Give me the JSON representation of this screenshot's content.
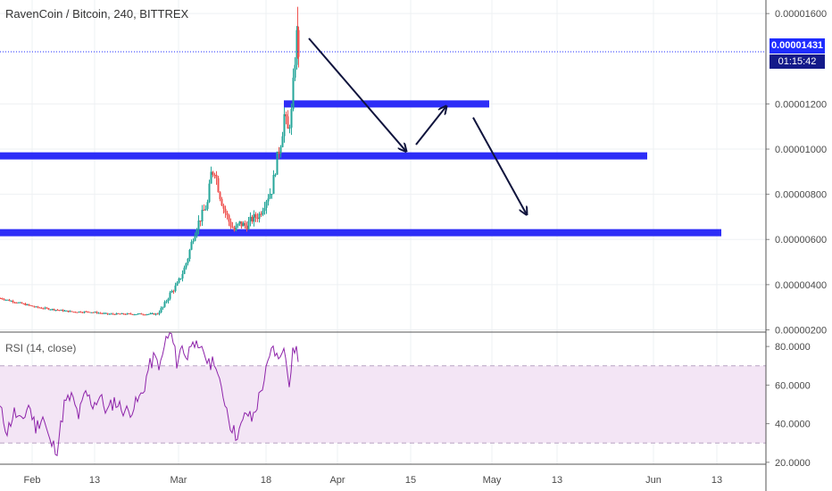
{
  "header": {
    "title": "RavenCoin / Bitcoin, 240, BITTREX"
  },
  "price_badge": {
    "price": "0.00001431",
    "countdown": "01:15:42"
  },
  "rsi": {
    "label": "RSI (14, close)",
    "upper": 70,
    "lower": 30
  },
  "colors": {
    "up": "#26a69a",
    "down": "#ef5350",
    "rsi_line": "#8e24aa",
    "rsi_band": "#f3e5f5",
    "zone": "#2d2df7",
    "arrow": "#10143d",
    "price_line": "#1f2dff"
  },
  "chart_data": [
    {
      "type": "candlestick",
      "title": "RavenCoin / Bitcoin, 240, BITTREX",
      "xlabels": [
        "Feb",
        "13",
        "Mar",
        "18",
        "Apr",
        "15",
        "May",
        "13",
        "Jun",
        "13"
      ],
      "yticks": [
        "0.00001600",
        "0.00001200",
        "0.00001000",
        "0.00000800",
        "0.00000600",
        "0.00000400",
        "0.00000200"
      ],
      "ylim": [
        1.9e-06,
        1.66e-05
      ],
      "last_price": 1.431e-05,
      "price_points": [
        [
          0,
          3.4e-06
        ],
        [
          10,
          3.3e-06
        ],
        [
          20,
          3.2e-06
        ],
        [
          30,
          3.1e-06
        ],
        [
          40,
          3e-06
        ],
        [
          60,
          2.9e-06
        ],
        [
          80,
          2.8e-06
        ],
        [
          100,
          2.8e-06
        ],
        [
          120,
          2.7e-06
        ],
        [
          140,
          2.7e-06
        ],
        [
          160,
          2.7e-06
        ],
        [
          175,
          2.7e-06
        ],
        [
          182,
          3e-06
        ],
        [
          190,
          3.6e-06
        ],
        [
          198,
          4e-06
        ],
        [
          205,
          4.6e-06
        ],
        [
          210,
          5.2e-06
        ],
        [
          215,
          6e-06
        ],
        [
          220,
          6.6e-06
        ],
        [
          226,
          7.1e-06
        ],
        [
          232,
          7.6e-06
        ],
        [
          236,
          8.9e-06
        ],
        [
          240,
          9.1e-06
        ],
        [
          245,
          8.1e-06
        ],
        [
          250,
          7.4e-06
        ],
        [
          256,
          6.8e-06
        ],
        [
          262,
          6.4e-06
        ],
        [
          268,
          6.7e-06
        ],
        [
          275,
          6.6e-06
        ],
        [
          282,
          6.9e-06
        ],
        [
          290,
          7.1e-06
        ],
        [
          298,
          7.8e-06
        ],
        [
          304,
          8.2e-06
        ],
        [
          310,
          9.6e-06
        ],
        [
          315,
          1.05e-05
        ],
        [
          318,
          1.15e-05
        ],
        [
          322,
          1.08e-05
        ],
        [
          326,
          1.16e-05
        ],
        [
          330,
          1.4e-05
        ],
        [
          333,
          1.55e-05
        ],
        [
          334,
          1.43e-05
        ]
      ],
      "horizontal_zones": [
        {
          "price": 1.2e-05,
          "x_start": 318,
          "x_end": 548
        },
        {
          "price": 9.7e-06,
          "x_start": 0,
          "x_end": 725
        },
        {
          "price": 6.3e-06,
          "x_start": 0,
          "x_end": 808
        }
      ],
      "arrows": [
        [
          [
            346,
            1.49e-05
          ],
          [
            455,
            9.9e-06
          ]
        ],
        [
          [
            466,
            1.02e-05
          ],
          [
            500,
            1.19e-05
          ]
        ],
        [
          [
            530,
            1.14e-05
          ],
          [
            590,
            7.1e-06
          ]
        ]
      ]
    },
    {
      "type": "line",
      "title": "RSI (14, close)",
      "yticks": [
        "80.0000",
        "60.0000",
        "40.0000",
        "20.0000"
      ],
      "ylim": [
        19,
        87
      ],
      "band": [
        30,
        70
      ],
      "series": [
        {
          "name": "RSI (14, close)",
          "points": [
            [
              0,
              48
            ],
            [
              8,
              36
            ],
            [
              16,
              46
            ],
            [
              24,
              40
            ],
            [
              32,
              50
            ],
            [
              40,
              38
            ],
            [
              48,
              44
            ],
            [
              56,
              30
            ],
            [
              64,
              27
            ],
            [
              72,
              50
            ],
            [
              80,
              54
            ],
            [
              88,
              44
            ],
            [
              96,
              56
            ],
            [
              104,
              50
            ],
            [
              112,
              54
            ],
            [
              120,
              46
            ],
            [
              128,
              52
            ],
            [
              136,
              48
            ],
            [
              144,
              46
            ],
            [
              152,
              50
            ],
            [
              160,
              56
            ],
            [
              166,
              68
            ],
            [
              172,
              74
            ],
            [
              180,
              70
            ],
            [
              186,
              84
            ],
            [
              192,
              86
            ],
            [
              198,
              72
            ],
            [
              204,
              80
            ],
            [
              210,
              74
            ],
            [
              216,
              86
            ],
            [
              222,
              76
            ],
            [
              228,
              78
            ],
            [
              234,
              70
            ],
            [
              240,
              74
            ],
            [
              246,
              60
            ],
            [
              252,
              52
            ],
            [
              258,
              40
            ],
            [
              264,
              34
            ],
            [
              270,
              38
            ],
            [
              276,
              46
            ],
            [
              282,
              42
            ],
            [
              288,
              50
            ],
            [
              294,
              60
            ],
            [
              300,
              70
            ],
            [
              306,
              80
            ],
            [
              312,
              72
            ],
            [
              316,
              80
            ],
            [
              320,
              74
            ],
            [
              324,
              62
            ],
            [
              328,
              78
            ],
            [
              332,
              80
            ],
            [
              334,
              72
            ]
          ]
        }
      ]
    }
  ]
}
